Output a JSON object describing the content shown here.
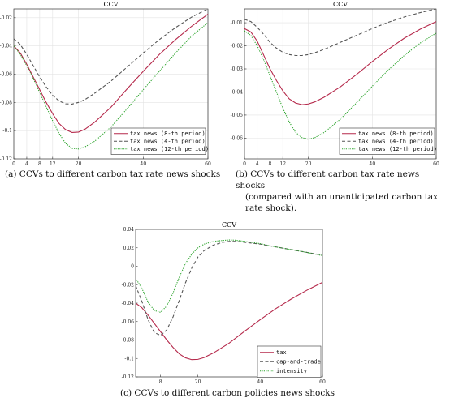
{
  "chart_data": [
    {
      "type": "line",
      "title": "CCV",
      "caption": "(a) CCVs to different carbon tax rate news shocks",
      "xlim": [
        0,
        60
      ],
      "ylim": [
        -0.12,
        -0.0138
      ],
      "xticks": [
        0,
        4,
        8,
        12,
        20,
        40,
        60
      ],
      "yticks": [
        -0.02,
        -0.04,
        -0.06,
        -0.08,
        -0.1,
        -0.12
      ],
      "ytick_labels": [
        "-0.02",
        "-0.04",
        "-0.06",
        "-0.08",
        "-0.1",
        "-0.12"
      ],
      "grid": true,
      "legend_position": "bottom-right",
      "series": [
        {
          "name": "tax news (8-th period)",
          "color": "#b5294b",
          "dash": "solid",
          "x": [
            0,
            2,
            4,
            6,
            8,
            10,
            12,
            14,
            16,
            18,
            20,
            22,
            25,
            30,
            35,
            40,
            45,
            50,
            55,
            60
          ],
          "y": [
            -0.04,
            -0.045,
            -0.053,
            -0.062,
            -0.071,
            -0.08,
            -0.088,
            -0.095,
            -0.0993,
            -0.1013,
            -0.101,
            -0.099,
            -0.094,
            -0.0835,
            -0.0705,
            -0.058,
            -0.046,
            -0.0355,
            -0.026,
            -0.0175
          ]
        },
        {
          "name": "tax news (4-th period)",
          "color": "#555555",
          "dash": "dashed",
          "x": [
            0,
            2,
            4,
            6,
            8,
            10,
            12,
            14,
            16,
            18,
            20,
            22,
            25,
            30,
            35,
            40,
            45,
            50,
            55,
            60
          ],
          "y": [
            -0.035,
            -0.039,
            -0.046,
            -0.054,
            -0.062,
            -0.069,
            -0.075,
            -0.079,
            -0.081,
            -0.0812,
            -0.08,
            -0.078,
            -0.0735,
            -0.065,
            -0.055,
            -0.045,
            -0.0355,
            -0.027,
            -0.0195,
            -0.0138
          ]
        },
        {
          "name": "tax news (12-th period)",
          "color": "#2ea52e",
          "dash": "dotted",
          "x": [
            0,
            2,
            4,
            6,
            8,
            10,
            12,
            14,
            16,
            18,
            20,
            22,
            25,
            30,
            35,
            40,
            45,
            50,
            55,
            60
          ],
          "y": [
            -0.04,
            -0.046,
            -0.054,
            -0.063,
            -0.073,
            -0.083,
            -0.093,
            -0.102,
            -0.109,
            -0.1125,
            -0.113,
            -0.1115,
            -0.1075,
            -0.0975,
            -0.0845,
            -0.071,
            -0.058,
            -0.045,
            -0.033,
            -0.0235
          ]
        }
      ]
    },
    {
      "type": "line",
      "title": "CCV",
      "caption": "(b) CCVs to different carbon tax rate news shocks (compared with an unanticipated carbon tax rate shock).",
      "caption_lines": [
        "(b) CCVs to different carbon tax rate news shocks",
        "(compared with an unanticipated carbon tax",
        "rate shock)."
      ],
      "xlim": [
        0,
        60
      ],
      "ylim": [
        -0.069,
        -0.004
      ],
      "xticks": [
        0,
        4,
        8,
        12,
        20,
        40,
        60
      ],
      "yticks": [
        -0.01,
        -0.02,
        -0.03,
        -0.04,
        -0.05,
        -0.06
      ],
      "ytick_labels": [
        "-0.01",
        "-0.02",
        "-0.03",
        "-0.04",
        "-0.05",
        "-0.06"
      ],
      "grid": true,
      "legend_position": "bottom-right",
      "series": [
        {
          "name": "tax news (8-th period)",
          "color": "#b5294b",
          "dash": "solid",
          "x": [
            0,
            2,
            4,
            6,
            8,
            10,
            12,
            14,
            16,
            18,
            20,
            22,
            25,
            30,
            35,
            40,
            45,
            50,
            55,
            60
          ],
          "y": [
            -0.0125,
            -0.014,
            -0.018,
            -0.024,
            -0.03,
            -0.035,
            -0.0395,
            -0.043,
            -0.0448,
            -0.0455,
            -0.0452,
            -0.0443,
            -0.0422,
            -0.0378,
            -0.0325,
            -0.0268,
            -0.0215,
            -0.0167,
            -0.0128,
            -0.0095
          ]
        },
        {
          "name": "tax news (4-th period)",
          "color": "#555555",
          "dash": "dashed",
          "x": [
            0,
            2,
            4,
            6,
            8,
            10,
            12,
            14,
            16,
            18,
            20,
            22,
            25,
            30,
            35,
            40,
            45,
            50,
            55,
            60
          ],
          "y": [
            -0.0085,
            -0.0095,
            -0.012,
            -0.015,
            -0.0185,
            -0.021,
            -0.0228,
            -0.0238,
            -0.0242,
            -0.0242,
            -0.0238,
            -0.023,
            -0.0215,
            -0.0185,
            -0.0155,
            -0.0125,
            -0.0098,
            -0.0075,
            -0.0056,
            -0.004
          ]
        },
        {
          "name": "tax news (12-th period)",
          "color": "#2ea52e",
          "dash": "dotted",
          "x": [
            0,
            2,
            4,
            6,
            8,
            10,
            12,
            14,
            16,
            18,
            20,
            22,
            25,
            30,
            35,
            40,
            45,
            50,
            55,
            60
          ],
          "y": [
            -0.0135,
            -0.0155,
            -0.02,
            -0.026,
            -0.033,
            -0.04,
            -0.047,
            -0.053,
            -0.0575,
            -0.0598,
            -0.0605,
            -0.0598,
            -0.0575,
            -0.0518,
            -0.0448,
            -0.0375,
            -0.0305,
            -0.0242,
            -0.0188,
            -0.0145
          ]
        }
      ]
    },
    {
      "type": "line",
      "title": "CCV",
      "caption": "(c) CCVs to different carbon policies news shocks",
      "xlim": [
        0,
        60
      ],
      "ylim": [
        -0.12,
        0.04
      ],
      "xticks": [
        8,
        20,
        40,
        60
      ],
      "yticks": [
        0.04,
        0.02,
        0,
        -0.02,
        -0.04,
        -0.06,
        -0.08,
        -0.1,
        -0.12
      ],
      "ytick_labels": [
        "0.04",
        "0.02",
        "0",
        "-0.02",
        "-0.04",
        "-0.06",
        "-0.08",
        "-0.1",
        "-0.12"
      ],
      "grid": false,
      "legend_position": "bottom-right",
      "series": [
        {
          "name": "tax",
          "color": "#b5294b",
          "dash": "solid",
          "x": [
            0,
            2,
            4,
            6,
            8,
            10,
            12,
            14,
            16,
            18,
            20,
            22,
            25,
            30,
            35,
            40,
            45,
            50,
            55,
            60
          ],
          "y": [
            -0.04,
            -0.045,
            -0.053,
            -0.062,
            -0.071,
            -0.08,
            -0.088,
            -0.095,
            -0.0993,
            -0.1013,
            -0.101,
            -0.099,
            -0.094,
            -0.0835,
            -0.0705,
            -0.058,
            -0.046,
            -0.0355,
            -0.026,
            -0.0175
          ]
        },
        {
          "name": "cap-and-trade",
          "color": "#555555",
          "dash": "dashed",
          "x": [
            0,
            2,
            4,
            6,
            8,
            10,
            12,
            14,
            16,
            18,
            20,
            22,
            25,
            28,
            30,
            32,
            35,
            40,
            45,
            50,
            55,
            60
          ],
          "y": [
            -0.021,
            -0.038,
            -0.058,
            -0.072,
            -0.075,
            -0.069,
            -0.055,
            -0.037,
            -0.018,
            -0.002,
            0.01,
            0.017,
            0.023,
            0.026,
            0.027,
            0.027,
            0.026,
            0.024,
            0.021,
            0.018,
            0.015,
            0.012
          ]
        },
        {
          "name": "intensity",
          "color": "#2ea52e",
          "dash": "dotted",
          "x": [
            0,
            2,
            4,
            6,
            8,
            10,
            12,
            14,
            16,
            18,
            20,
            22,
            25,
            28,
            30,
            32,
            35,
            40,
            45,
            50,
            55,
            60
          ],
          "y": [
            -0.013,
            -0.024,
            -0.039,
            -0.048,
            -0.05,
            -0.043,
            -0.029,
            -0.012,
            0.003,
            0.013,
            0.02,
            0.024,
            0.027,
            0.028,
            0.0285,
            0.0283,
            0.027,
            0.0245,
            0.021,
            0.018,
            0.015,
            0.0115
          ]
        }
      ]
    }
  ]
}
